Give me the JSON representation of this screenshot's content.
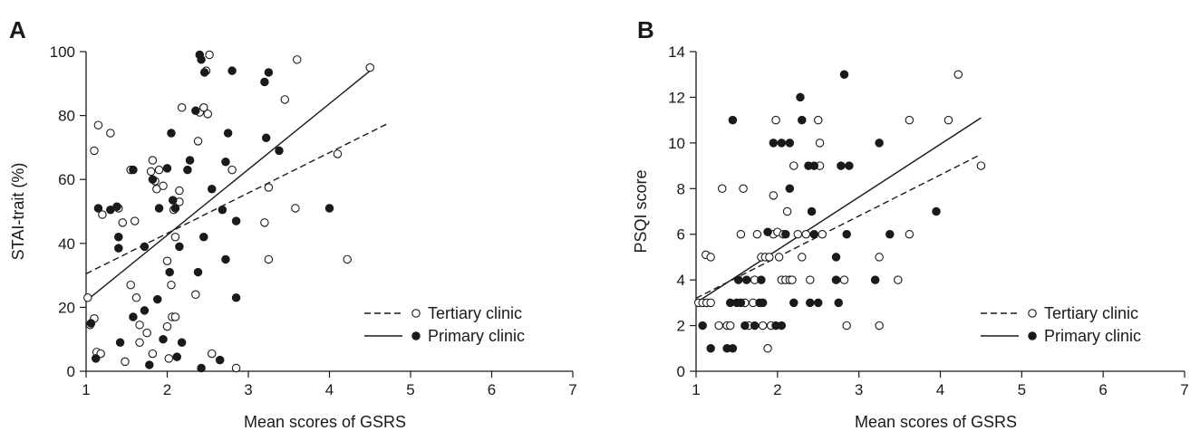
{
  "chart_data": [
    {
      "type": "scatter",
      "panel_label": "A",
      "xlabel": "Mean scores of GSRS",
      "ylabel": "STAI-trait (%)",
      "xlim": [
        1,
        7
      ],
      "ylim": [
        0,
        100
      ],
      "x_ticks": [
        1,
        2,
        3,
        4,
        5,
        6,
        7
      ],
      "y_ticks": [
        0,
        20,
        40,
        60,
        80,
        100
      ],
      "legend_position": "bottom-right",
      "series": [
        {
          "name": "Tertiary clinic",
          "marker": "open-circle",
          "line_style": "dashed",
          "fit": {
            "x": [
              1,
              4.72
            ],
            "y": [
              30.5,
              77.5
            ]
          },
          "points": [
            [
              1.02,
              23
            ],
            [
              1.05,
              14.5
            ],
            [
              1.1,
              69
            ],
            [
              1.1,
              16.5
            ],
            [
              1.13,
              6
            ],
            [
              1.18,
              5.5
            ],
            [
              1.15,
              77
            ],
            [
              1.2,
              49
            ],
            [
              1.3,
              74.5
            ],
            [
              1.4,
              51
            ],
            [
              1.45,
              46.5
            ],
            [
              1.48,
              3
            ],
            [
              1.55,
              63
            ],
            [
              1.55,
              27
            ],
            [
              1.6,
              47
            ],
            [
              1.62,
              23
            ],
            [
              1.66,
              14.5
            ],
            [
              1.66,
              9
            ],
            [
              1.75,
              12
            ],
            [
              1.8,
              62.5
            ],
            [
              1.82,
              66
            ],
            [
              1.82,
              5.5
            ],
            [
              1.85,
              59.5
            ],
            [
              1.87,
              57
            ],
            [
              1.9,
              63
            ],
            [
              1.95,
              58
            ],
            [
              2.0,
              34.5
            ],
            [
              2.0,
              14
            ],
            [
              2.02,
              4
            ],
            [
              2.05,
              27
            ],
            [
              2.06,
              17
            ],
            [
              2.08,
              50.5
            ],
            [
              2.1,
              17
            ],
            [
              2.1,
              42
            ],
            [
              2.15,
              56.5
            ],
            [
              2.15,
              53
            ],
            [
              2.18,
              82.5
            ],
            [
              2.35,
              24
            ],
            [
              2.38,
              72
            ],
            [
              2.4,
              81
            ],
            [
              2.45,
              82.5
            ],
            [
              2.5,
              80.5
            ],
            [
              2.48,
              94
            ],
            [
              2.52,
              99
            ],
            [
              2.55,
              5.5
            ],
            [
              2.8,
              63
            ],
            [
              2.85,
              1
            ],
            [
              3.2,
              46.5
            ],
            [
              3.25,
              57.5
            ],
            [
              3.25,
              35
            ],
            [
              3.45,
              85
            ],
            [
              3.58,
              51
            ],
            [
              3.6,
              97.5
            ],
            [
              4.1,
              68
            ],
            [
              4.22,
              35
            ],
            [
              4.5,
              95
            ]
          ]
        },
        {
          "name": "Primary clinic",
          "marker": "filled-circle",
          "line_style": "solid",
          "fit": {
            "x": [
              1,
              4.5
            ],
            "y": [
              22,
              94
            ]
          },
          "points": [
            [
              1.06,
              15
            ],
            [
              1.12,
              4
            ],
            [
              1.15,
              51
            ],
            [
              1.3,
              50.5
            ],
            [
              1.38,
              51.5
            ],
            [
              1.4,
              42
            ],
            [
              1.4,
              38.5
            ],
            [
              1.42,
              9
            ],
            [
              1.58,
              63
            ],
            [
              1.58,
              17
            ],
            [
              1.72,
              19
            ],
            [
              1.72,
              39
            ],
            [
              1.78,
              2
            ],
            [
              1.82,
              60
            ],
            [
              1.88,
              22.5
            ],
            [
              1.9,
              51
            ],
            [
              1.95,
              10
            ],
            [
              2.0,
              63.5
            ],
            [
              2.03,
              31
            ],
            [
              2.05,
              74.5
            ],
            [
              2.07,
              53.5
            ],
            [
              2.1,
              51
            ],
            [
              2.12,
              4.5
            ],
            [
              2.15,
              39
            ],
            [
              2.18,
              9
            ],
            [
              2.25,
              63
            ],
            [
              2.28,
              66
            ],
            [
              2.35,
              81.5
            ],
            [
              2.38,
              31
            ],
            [
              2.4,
              99
            ],
            [
              2.42,
              97.5
            ],
            [
              2.42,
              1
            ],
            [
              2.45,
              42
            ],
            [
              2.46,
              93.5
            ],
            [
              2.55,
              57
            ],
            [
              2.65,
              3.5
            ],
            [
              2.68,
              50.5
            ],
            [
              2.72,
              65.5
            ],
            [
              2.72,
              35
            ],
            [
              2.75,
              74.5
            ],
            [
              2.8,
              94
            ],
            [
              2.85,
              23
            ],
            [
              2.85,
              47
            ],
            [
              3.2,
              90.5
            ],
            [
              3.22,
              73
            ],
            [
              3.25,
              93.5
            ],
            [
              3.38,
              69
            ],
            [
              4.0,
              51
            ]
          ]
        }
      ]
    },
    {
      "type": "scatter",
      "panel_label": "B",
      "xlabel": "Mean scores of GSRS",
      "ylabel": "PSQI score",
      "xlim": [
        1,
        7
      ],
      "ylim": [
        0,
        14
      ],
      "x_ticks": [
        1,
        2,
        3,
        4,
        5,
        6,
        7
      ],
      "y_ticks": [
        0,
        2,
        4,
        6,
        8,
        10,
        12,
        14
      ],
      "legend_position": "bottom-right",
      "series": [
        {
          "name": "Tertiary clinic",
          "marker": "open-circle",
          "line_style": "dashed",
          "fit": {
            "x": [
              1,
              4.5
            ],
            "y": [
              3.2,
              9.5
            ]
          },
          "points": [
            [
              1.03,
              3
            ],
            [
              1.08,
              3
            ],
            [
              1.12,
              5.1
            ],
            [
              1.13,
              3
            ],
            [
              1.18,
              3
            ],
            [
              1.18,
              5
            ],
            [
              1.28,
              2
            ],
            [
              1.32,
              8
            ],
            [
              1.38,
              2
            ],
            [
              1.42,
              2
            ],
            [
              1.55,
              6
            ],
            [
              1.58,
              8
            ],
            [
              1.6,
              3
            ],
            [
              1.65,
              2
            ],
            [
              1.7,
              3
            ],
            [
              1.72,
              4
            ],
            [
              1.75,
              6
            ],
            [
              1.8,
              5
            ],
            [
              1.82,
              2
            ],
            [
              1.85,
              5
            ],
            [
              1.88,
              1
            ],
            [
              1.9,
              5
            ],
            [
              1.92,
              2
            ],
            [
              1.95,
              7.7
            ],
            [
              1.95,
              6
            ],
            [
              1.98,
              11
            ],
            [
              2.0,
              6.1
            ],
            [
              2.02,
              5
            ],
            [
              2.05,
              4
            ],
            [
              2.07,
              6
            ],
            [
              2.1,
              4
            ],
            [
              2.12,
              7
            ],
            [
              2.15,
              4
            ],
            [
              2.18,
              4
            ],
            [
              2.2,
              9
            ],
            [
              2.25,
              6
            ],
            [
              2.3,
              5
            ],
            [
              2.35,
              6
            ],
            [
              2.4,
              4
            ],
            [
              2.5,
              11
            ],
            [
              2.52,
              9
            ],
            [
              2.52,
              10
            ],
            [
              2.55,
              6
            ],
            [
              2.82,
              4
            ],
            [
              2.85,
              2
            ],
            [
              3.25,
              5
            ],
            [
              3.25,
              2
            ],
            [
              3.48,
              4
            ],
            [
              3.62,
              6
            ],
            [
              3.62,
              11
            ],
            [
              4.1,
              11
            ],
            [
              4.22,
              13
            ],
            [
              4.5,
              9
            ]
          ]
        },
        {
          "name": "Primary clinic",
          "marker": "filled-circle",
          "line_style": "solid",
          "fit": {
            "x": [
              1,
              4.5
            ],
            "y": [
              3,
              11.1
            ]
          },
          "points": [
            [
              1.08,
              2
            ],
            [
              1.18,
              1
            ],
            [
              1.38,
              1
            ],
            [
              1.42,
              3
            ],
            [
              1.45,
              1
            ],
            [
              1.45,
              11
            ],
            [
              1.5,
              3
            ],
            [
              1.52,
              4
            ],
            [
              1.55,
              3
            ],
            [
              1.6,
              2
            ],
            [
              1.62,
              4
            ],
            [
              1.72,
              2
            ],
            [
              1.78,
              3
            ],
            [
              1.8,
              4
            ],
            [
              1.82,
              3
            ],
            [
              1.88,
              6.1
            ],
            [
              1.95,
              10
            ],
            [
              1.98,
              2
            ],
            [
              2.05,
              10
            ],
            [
              2.05,
              2
            ],
            [
              2.1,
              6
            ],
            [
              2.15,
              8
            ],
            [
              2.15,
              10
            ],
            [
              2.2,
              3
            ],
            [
              2.28,
              12
            ],
            [
              2.3,
              11
            ],
            [
              2.38,
              9
            ],
            [
              2.4,
              3
            ],
            [
              2.42,
              7
            ],
            [
              2.45,
              6
            ],
            [
              2.45,
              9
            ],
            [
              2.5,
              3
            ],
            [
              2.72,
              5
            ],
            [
              2.72,
              4
            ],
            [
              2.75,
              3
            ],
            [
              2.78,
              9
            ],
            [
              2.82,
              13
            ],
            [
              2.85,
              6
            ],
            [
              2.88,
              9
            ],
            [
              3.2,
              4
            ],
            [
              3.25,
              10
            ],
            [
              3.38,
              6
            ],
            [
              3.95,
              7
            ]
          ]
        }
      ]
    }
  ]
}
